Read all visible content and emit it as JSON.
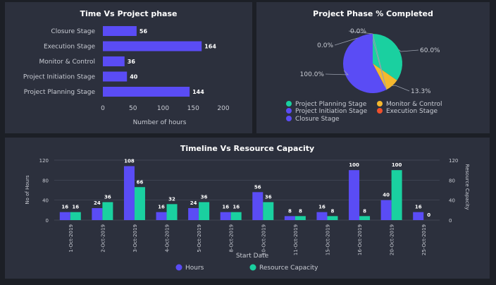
{
  "panels": {
    "left_title": "Time Vs Project phase",
    "pie_title": "Project Phase % Completed",
    "timeline_title": "Timeline Vs Resource Capacity"
  },
  "colors": {
    "background": "#1c1f26",
    "panel": "#2c303d",
    "hours": "#5a4cf5",
    "resource": "#1ad0a0",
    "monitor": "#f5b82e",
    "execution": "#f0502c",
    "grid": "#474c5c"
  },
  "chart_data": [
    {
      "type": "bar",
      "orientation": "horizontal",
      "title": "Time Vs Project phase",
      "categories": [
        "Closure Stage",
        "Execution Stage",
        "Monitor & Control",
        "Project Initiation Stage",
        "Project Planning Stage"
      ],
      "values": [
        56,
        164,
        36,
        40,
        144
      ],
      "xlabel": "Number of hours",
      "xlim": [
        0,
        200
      ],
      "xticks": [
        "0",
        "50",
        "100",
        "150",
        "200"
      ],
      "grid": false
    },
    {
      "type": "pie",
      "title": "Project Phase % Completed",
      "slices": [
        {
          "name": "Project Planning Stage",
          "value": 60,
          "label": "60.0%",
          "color": "#1ad0a0"
        },
        {
          "name": "Monitor & Control",
          "value": 13.3,
          "label": "13.3%",
          "color": "#f5b82e"
        },
        {
          "name": "Execution Stage",
          "value": 0,
          "label": "0.0%",
          "color": "#f0502c"
        },
        {
          "name": "Project Initiation Stage",
          "value": 0,
          "label": "0.0%",
          "color": "#5a4cf5"
        },
        {
          "name": "Closure Stage",
          "value": 100,
          "label": "100.0%",
          "color": "#5a4cf5"
        }
      ],
      "legend": "bottom"
    },
    {
      "type": "bar",
      "title": "Timeline Vs Resource Capacity",
      "categories": [
        "1-Oct-2019",
        "2-Oct-2019",
        "3-Oct-2019",
        "4-Oct-2019",
        "5-Oct-2019",
        "8-Oct-2019",
        "10-Oct-2019",
        "11-Oct-2019",
        "15-Oct-2019",
        "16-Oct-2019",
        "20-Oct-2019",
        "25-Oct-2019"
      ],
      "series": [
        {
          "name": "Hours",
          "values": [
            16,
            24,
            108,
            16,
            24,
            16,
            56,
            8,
            16,
            100,
            40,
            16
          ]
        },
        {
          "name": "Resource Capacity",
          "values": [
            16,
            36,
            66,
            32,
            36,
            16,
            36,
            8,
            8,
            8,
            100,
            0
          ]
        }
      ],
      "xlabel": "Start Date",
      "ylabel": "No of Hours",
      "y2label": "Resource Capacity",
      "ylim": [
        0,
        120
      ],
      "yticks": [
        "0",
        "40",
        "80",
        "120"
      ],
      "legend": "bottom",
      "grid": true
    }
  ]
}
